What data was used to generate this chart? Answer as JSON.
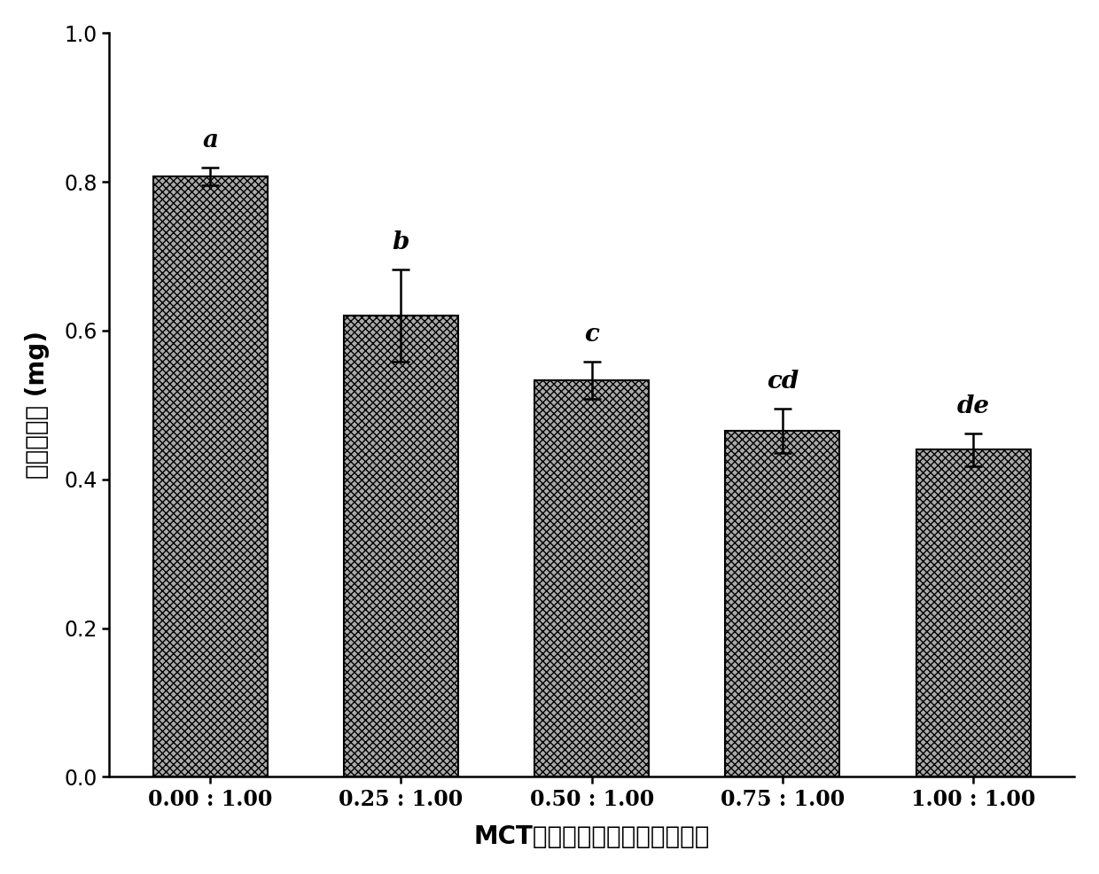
{
  "categories": [
    "0.00 : 1.00",
    "0.25 : 1.00",
    "0.50 : 1.00",
    "0.75 : 1.00",
    "1.00 : 1.00"
  ],
  "values": [
    0.807,
    0.62,
    0.533,
    0.465,
    0.44
  ],
  "errors": [
    0.012,
    0.062,
    0.025,
    0.03,
    0.022
  ],
  "labels": [
    "a",
    "b",
    "c",
    "cd",
    "de"
  ],
  "bar_color": "#aaaaaa",
  "bar_hatch": "xxxx",
  "bar_edgecolor": "#000000",
  "ylabel": "吸收的水分 (mg)",
  "xlabel": "MCT与次级肠溶包衣材料的比例",
  "ylim": [
    0.0,
    1.0
  ],
  "yticks": [
    0.0,
    0.2,
    0.4,
    0.6,
    0.8,
    1.0
  ],
  "background_color": "#ffffff",
  "label_fontsize": 20,
  "tick_fontsize": 17,
  "annot_fontsize": 20,
  "bar_width": 0.6
}
